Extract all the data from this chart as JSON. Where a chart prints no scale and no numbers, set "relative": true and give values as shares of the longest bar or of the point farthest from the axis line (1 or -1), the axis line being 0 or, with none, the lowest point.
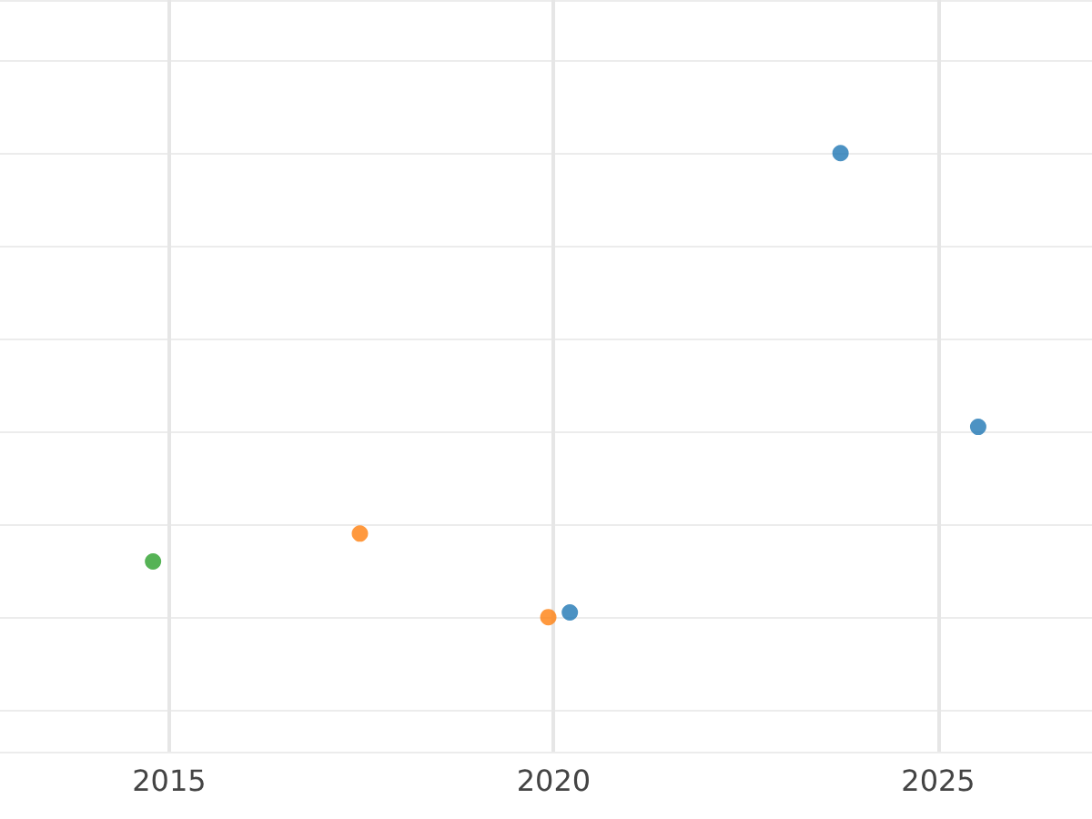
{
  "chart_data": {
    "type": "scatter",
    "relative": true,
    "xlim": [
      2012.8,
      2027
    ],
    "xticks": [
      2015,
      2020,
      2025
    ],
    "grid": true,
    "marker": "circle",
    "tick_labels": "x",
    "series": [
      {
        "color": "#1f77b4",
        "x": [
          2020.21,
          2023.73,
          2025.52
        ],
        "values": [
          0.01,
          1,
          0.41
        ]
      },
      {
        "color": "#ff7f0e",
        "x": [
          2017.48,
          2019.93
        ],
        "values": [
          0.18,
          0
        ]
      },
      {
        "color": "#2ca02c",
        "x": [
          2014.79
        ],
        "values": [
          0.12
        ]
      }
    ]
  }
}
